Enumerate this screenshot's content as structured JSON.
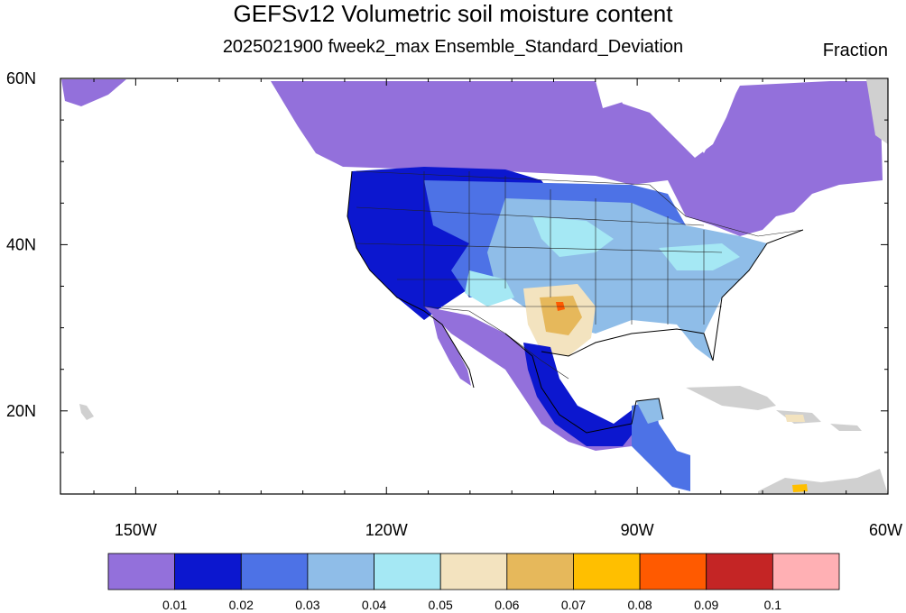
{
  "title": "GEFSv12 Volumetric soil moisture content",
  "subtitle": "2025021900 fweek2_max Ensemble_Standard_Deviation",
  "units": "Fraction",
  "map": {
    "projection": "cylindrical-equidistant",
    "lon_range": [
      -159,
      -60
    ],
    "lat_range": [
      10,
      60
    ],
    "x_ticks": [
      {
        "lon": -150,
        "label": "150W"
      },
      {
        "lon": -120,
        "label": "120W"
      },
      {
        "lon": -90,
        "label": "90W"
      },
      {
        "lon": -60,
        "label": "60W"
      }
    ],
    "y_ticks": [
      {
        "lat": 60,
        "label": "60N"
      },
      {
        "lat": 40,
        "label": "40N"
      },
      {
        "lat": 20,
        "label": "20N"
      }
    ],
    "variable": "volumetric soil moisture ensemble standard deviation",
    "missing_color": "#d0d0d0",
    "ocean_color": "#ffffff",
    "regions": [
      {
        "name": "Canada / Alaska",
        "level": "<0.01"
      },
      {
        "name": "Pacific Northwest and Rockies",
        "level": "0.01-0.03"
      },
      {
        "name": "Central and Eastern US",
        "level": "0.03-0.05"
      },
      {
        "name": "Texas",
        "level": "0.05-0.09"
      },
      {
        "name": "Mexico",
        "level": "<0.01-0.03"
      },
      {
        "name": "Central America",
        "level": "0.02-0.04"
      }
    ]
  },
  "colorbar": {
    "colors": [
      "#9370db",
      "#0c17cf",
      "#4d72e6",
      "#8fbde8",
      "#a5e8f4",
      "#f3e3bf",
      "#e6b85b",
      "#ffbf00",
      "#ff5a00",
      "#c42525",
      "#ffb0b4"
    ],
    "labels": [
      "0.01",
      "0.02",
      "0.03",
      "0.04",
      "0.05",
      "0.06",
      "0.07",
      "0.08",
      "0.09",
      "0.1"
    ]
  }
}
